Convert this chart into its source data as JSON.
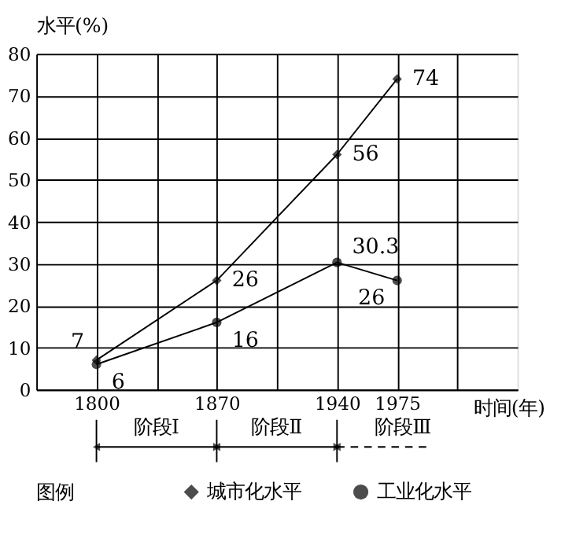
{
  "chart_data": {
    "type": "line",
    "xlabel": "时间(年)",
    "ylabel": "水平(%)",
    "legend_title": "图例",
    "legend": "bottom",
    "x": [
      1800,
      1870,
      1940,
      1975
    ],
    "series": [
      {
        "name": "城市化水平",
        "color": "#000000",
        "marker": "diamond",
        "values": [
          7,
          26,
          56,
          74
        ]
      },
      {
        "name": "工业化水平",
        "color": "#000000",
        "marker": "circle",
        "values": [
          6,
          16,
          30.3,
          26
        ]
      }
    ],
    "xlim": [
      1765,
      2045
    ],
    "xticks": [
      1800,
      {
        "value": 1835,
        "label": null
      },
      1870,
      {
        "value": 1905,
        "label": null
      },
      1940,
      1975,
      {
        "value": 2010,
        "label": null
      }
    ],
    "ylim": [
      0,
      80
    ],
    "yticks": [
      0,
      10,
      20,
      30,
      40,
      50,
      60,
      70,
      80
    ],
    "grid": true,
    "data_labels": true,
    "line_style": "solid",
    "annotations": [
      "阶段Ⅰ",
      "阶段Ⅱ",
      "阶段Ⅲ"
    ]
  }
}
